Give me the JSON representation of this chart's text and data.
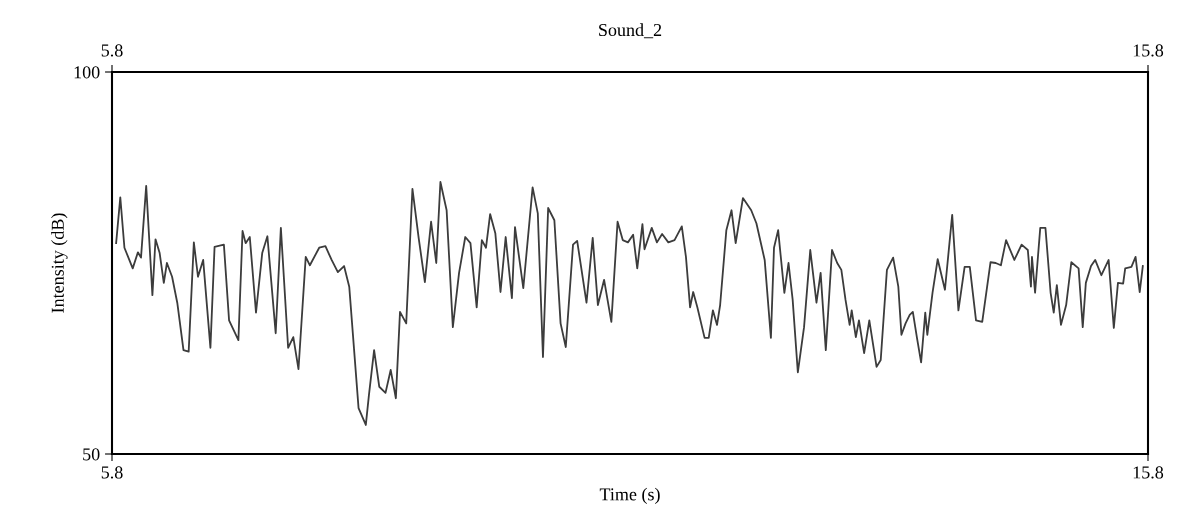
{
  "chart_data": {
    "type": "line",
    "title": "Sound_2",
    "xlabel": "Time (s)",
    "ylabel": "Intensity (dB)",
    "xlim": [
      5.8,
      15.8
    ],
    "xticks": [
      5.8,
      15.8
    ],
    "x2lim": [
      5.8,
      15.8
    ],
    "x2ticks": [
      5.8,
      15.8
    ],
    "ylim": [
      50,
      100
    ],
    "yticks": [
      50,
      100
    ],
    "legend": false,
    "marker": "none",
    "line_style": "solid",
    "series": [
      {
        "color": "#3c3c3c",
        "x": [
          5.84,
          5.88,
          5.92,
          6.0,
          6.05,
          6.08,
          6.13,
          6.19,
          6.22,
          6.26,
          6.3,
          6.33,
          6.38,
          6.43,
          6.49,
          6.54,
          6.59,
          6.63,
          6.68,
          6.75,
          6.79,
          6.88,
          6.93,
          7.02,
          7.06,
          7.09,
          7.13,
          7.19,
          7.25,
          7.3,
          7.38,
          7.43,
          7.5,
          7.55,
          7.6,
          7.67,
          7.71,
          7.8,
          7.86,
          7.92,
          7.98,
          8.04,
          8.09,
          8.18,
          8.25,
          8.28,
          8.33,
          8.38,
          8.44,
          8.49,
          8.54,
          8.58,
          8.64,
          8.7,
          8.76,
          8.82,
          8.88,
          8.93,
          8.97,
          9.03,
          9.09,
          9.15,
          9.21,
          9.26,
          9.32,
          9.37,
          9.41,
          9.45,
          9.5,
          9.55,
          9.6,
          9.66,
          9.69,
          9.77,
          9.86,
          9.91,
          9.96,
          10.01,
          10.07,
          10.13,
          10.18,
          10.25,
          10.29,
          10.38,
          10.44,
          10.49,
          10.55,
          10.62,
          10.68,
          10.73,
          10.78,
          10.83,
          10.87,
          10.92,
          10.94,
          11.01,
          11.06,
          11.11,
          11.17,
          11.23,
          11.3,
          11.34,
          11.38,
          11.41,
          11.45,
          11.52,
          11.56,
          11.6,
          11.64,
          11.67,
          11.73,
          11.78,
          11.82,
          11.89,
          11.97,
          12.02,
          12.1,
          12.16,
          12.19,
          12.23,
          12.29,
          12.33,
          12.37,
          12.42,
          12.48,
          12.54,
          12.6,
          12.64,
          12.69,
          12.75,
          12.8,
          12.84,
          12.88,
          12.92,
          12.94,
          12.98,
          13.01,
          13.06,
          13.11,
          13.18,
          13.22,
          13.28,
          13.34,
          13.39,
          13.42,
          13.46,
          13.5,
          13.53,
          13.57,
          13.61,
          13.65,
          13.67,
          13.72,
          13.77,
          13.84,
          13.91,
          13.97,
          14.03,
          14.08,
          14.14,
          14.2,
          14.28,
          14.33,
          14.38,
          14.43,
          14.51,
          14.58,
          14.64,
          14.67,
          14.68,
          14.71,
          14.76,
          14.81,
          14.86,
          14.89,
          14.92,
          14.96,
          15.01,
          15.06,
          15.13,
          15.17,
          15.2,
          15.25,
          15.29,
          15.35,
          15.42,
          15.47,
          15.51,
          15.56,
          15.58,
          15.64,
          15.68,
          15.72,
          15.75
        ],
        "values": [
          77.6,
          83.6,
          77.0,
          74.3,
          76.4,
          75.7,
          85.1,
          70.8,
          78.1,
          76.3,
          72.4,
          75.0,
          73.2,
          69.8,
          63.6,
          63.4,
          77.7,
          73.2,
          75.4,
          63.9,
          77.1,
          77.4,
          67.5,
          64.9,
          79.2,
          77.6,
          78.4,
          68.5,
          76.3,
          78.5,
          65.8,
          79.6,
          63.9,
          65.3,
          61.1,
          75.8,
          74.7,
          77.0,
          77.2,
          75.4,
          73.8,
          74.6,
          71.9,
          56.0,
          53.8,
          57.7,
          63.6,
          58.8,
          58.0,
          61.0,
          57.3,
          68.6,
          67.1,
          84.7,
          78.3,
          72.5,
          80.4,
          75.0,
          85.6,
          81.9,
          66.6,
          73.7,
          78.4,
          77.6,
          69.2,
          78.0,
          77.0,
          81.4,
          78.9,
          71.2,
          78.4,
          70.4,
          79.7,
          71.7,
          84.9,
          81.5,
          62.7,
          82.2,
          80.6,
          67.1,
          64.0,
          77.4,
          77.9,
          69.8,
          78.3,
          69.5,
          72.8,
          67.3,
          80.4,
          78.0,
          77.7,
          78.7,
          74.3,
          80.1,
          76.8,
          79.6,
          77.7,
          78.8,
          77.7,
          78.0,
          79.8,
          75.8,
          69.2,
          71.2,
          69.2,
          65.2,
          65.2,
          68.8,
          66.9,
          69.5,
          79.3,
          81.9,
          77.6,
          83.5,
          81.9,
          80.2,
          75.4,
          65.2,
          77.0,
          79.3,
          71.1,
          75.0,
          70.2,
          60.7,
          66.6,
          76.7,
          69.8,
          73.7,
          63.6,
          76.7,
          75.0,
          74.1,
          70.2,
          66.9,
          68.8,
          65.3,
          67.5,
          63.2,
          67.5,
          61.4,
          62.3,
          74.1,
          75.7,
          71.9,
          65.6,
          67.1,
          68.2,
          68.6,
          65.2,
          62.0,
          68.5,
          65.6,
          71.1,
          75.5,
          71.5,
          81.3,
          68.8,
          74.5,
          74.5,
          67.5,
          67.3,
          75.1,
          75.0,
          74.7,
          78.0,
          75.4,
          77.4,
          76.7,
          71.9,
          75.8,
          71.1,
          79.6,
          79.6,
          71.1,
          68.5,
          72.1,
          66.9,
          69.5,
          75.1,
          74.3,
          66.6,
          72.4,
          74.6,
          75.4,
          73.4,
          75.4,
          66.5,
          72.4,
          72.3,
          74.3,
          74.5,
          75.8,
          71.2,
          74.6
        ]
      }
    ]
  }
}
